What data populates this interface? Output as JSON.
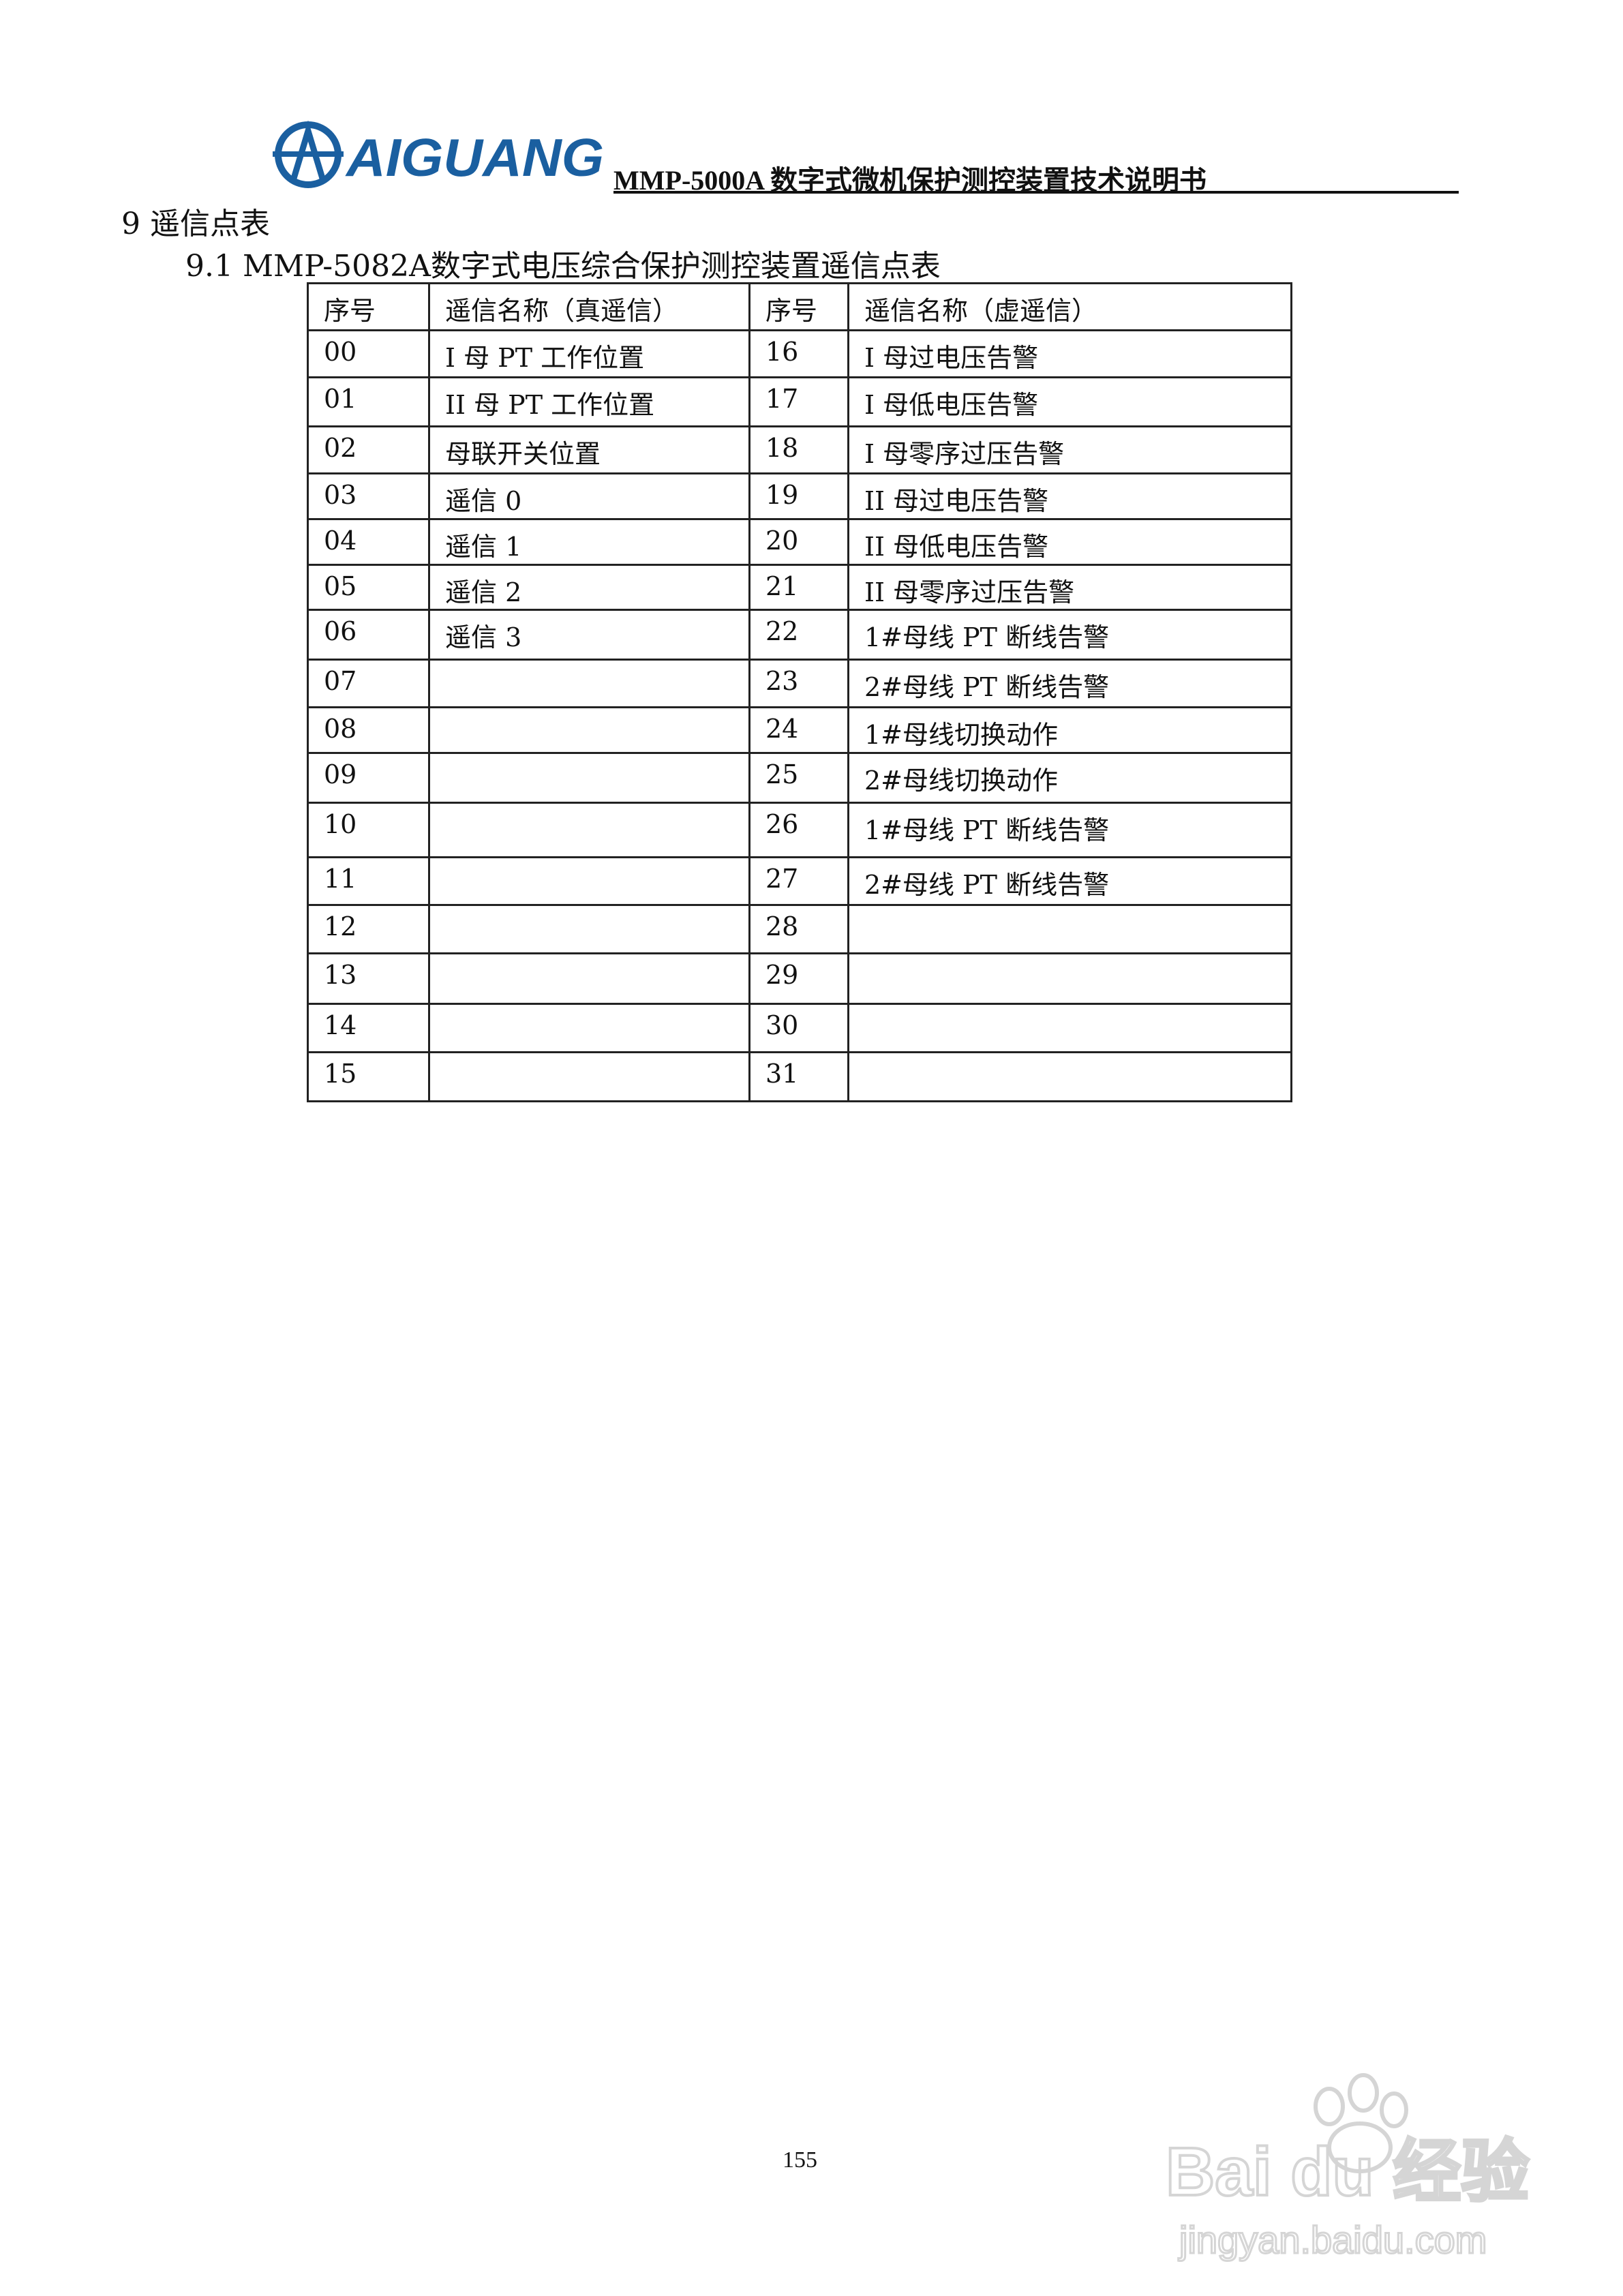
{
  "header": {
    "logo_text": "AIGUANG",
    "doc_title": "MMP-5000A 数字式微机保护测控装置技术说明书",
    "logo_color": "#1a5fa0"
  },
  "section": {
    "title": "9  遥信点表",
    "subtitle": "9.1  MMP-5082A数字式电压综合保护测控装置遥信点表"
  },
  "table": {
    "headers": [
      "序号",
      "遥信名称（真遥信）",
      "序号",
      "遥信名称（虚遥信）"
    ],
    "rows": [
      [
        "00",
        "I 母 PT 工作位置",
        "16",
        "I 母过电压告警"
      ],
      [
        "01",
        "II 母 PT 工作位置",
        "17",
        "I 母低电压告警"
      ],
      [
        "02",
        "母联开关位置",
        "18",
        "I 母零序过压告警"
      ],
      [
        "03",
        "遥信 0",
        "19",
        "II 母过电压告警"
      ],
      [
        "04",
        "遥信 1",
        "20",
        "II 母低电压告警"
      ],
      [
        "05",
        "遥信 2",
        "21",
        "II 母零序过压告警"
      ],
      [
        "06",
        "遥信 3",
        "22",
        "1#母线 PT 断线告警"
      ],
      [
        "07",
        "",
        "23",
        "2#母线 PT 断线告警"
      ],
      [
        "08",
        "",
        "24",
        "1#母线切换动作"
      ],
      [
        "09",
        "",
        "25",
        "2#母线切换动作"
      ],
      [
        "10",
        "",
        "26",
        "1#母线 PT 断线告警"
      ],
      [
        "11",
        "",
        "27",
        "2#母线 PT 断线告警"
      ],
      [
        "12",
        "",
        "28",
        ""
      ],
      [
        "13",
        "",
        "29",
        ""
      ],
      [
        "14",
        "",
        "30",
        ""
      ],
      [
        "15",
        "",
        "31",
        ""
      ]
    ]
  },
  "footer": {
    "page_number": "155",
    "watermark_text": "Bai du 经验",
    "watermark_url": "jingyan.baidu.com"
  }
}
